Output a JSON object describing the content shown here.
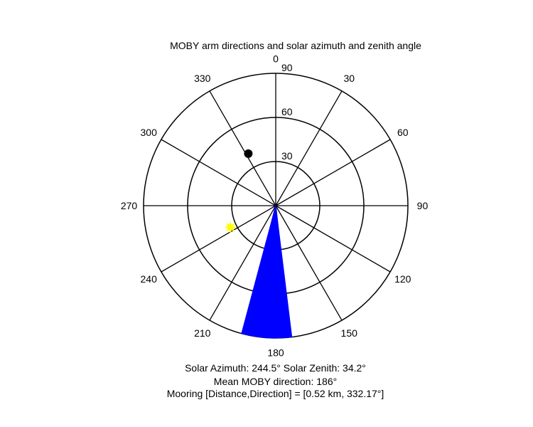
{
  "chart_data": {
    "type": "polar",
    "title": "MOBY arm directions and solar azimuth and zenith angle",
    "theta_direction": "clockwise",
    "theta_zero": "top",
    "angle_ticks": [
      "0",
      "30",
      "60",
      "90",
      "120",
      "150",
      "180",
      "210",
      "240",
      "270",
      "300",
      "330"
    ],
    "radial_ticks": [
      "30",
      "60",
      "90"
    ],
    "radial_max": 90,
    "grid": true,
    "series": [
      {
        "name": "MOBY arm directions",
        "marker": "filled-wedge",
        "color": "#0000ff",
        "azimuth_range": [
          173,
          195
        ],
        "radius": 90
      },
      {
        "name": "MOBY arm edge lines",
        "marker": "line",
        "color": "#0000ff",
        "azimuths": [
          174,
          178,
          190,
          194
        ],
        "radius": 90
      },
      {
        "name": "Sun",
        "marker": "sun",
        "color": "#ffff00",
        "azimuth": 244.5,
        "zenith": 34.2
      },
      {
        "name": "Mooring",
        "marker": "dot",
        "color": "#000000",
        "azimuth": 332.17,
        "zenith": 40
      }
    ]
  },
  "captions": {
    "solar": "Solar Azimuth: 244.5°   Solar Zenith: 34.2°",
    "mean_direction": "Mean MOBY direction: 186°",
    "mooring": "Mooring [Distance,Direction] = [0.52 km, 332.17°]"
  }
}
